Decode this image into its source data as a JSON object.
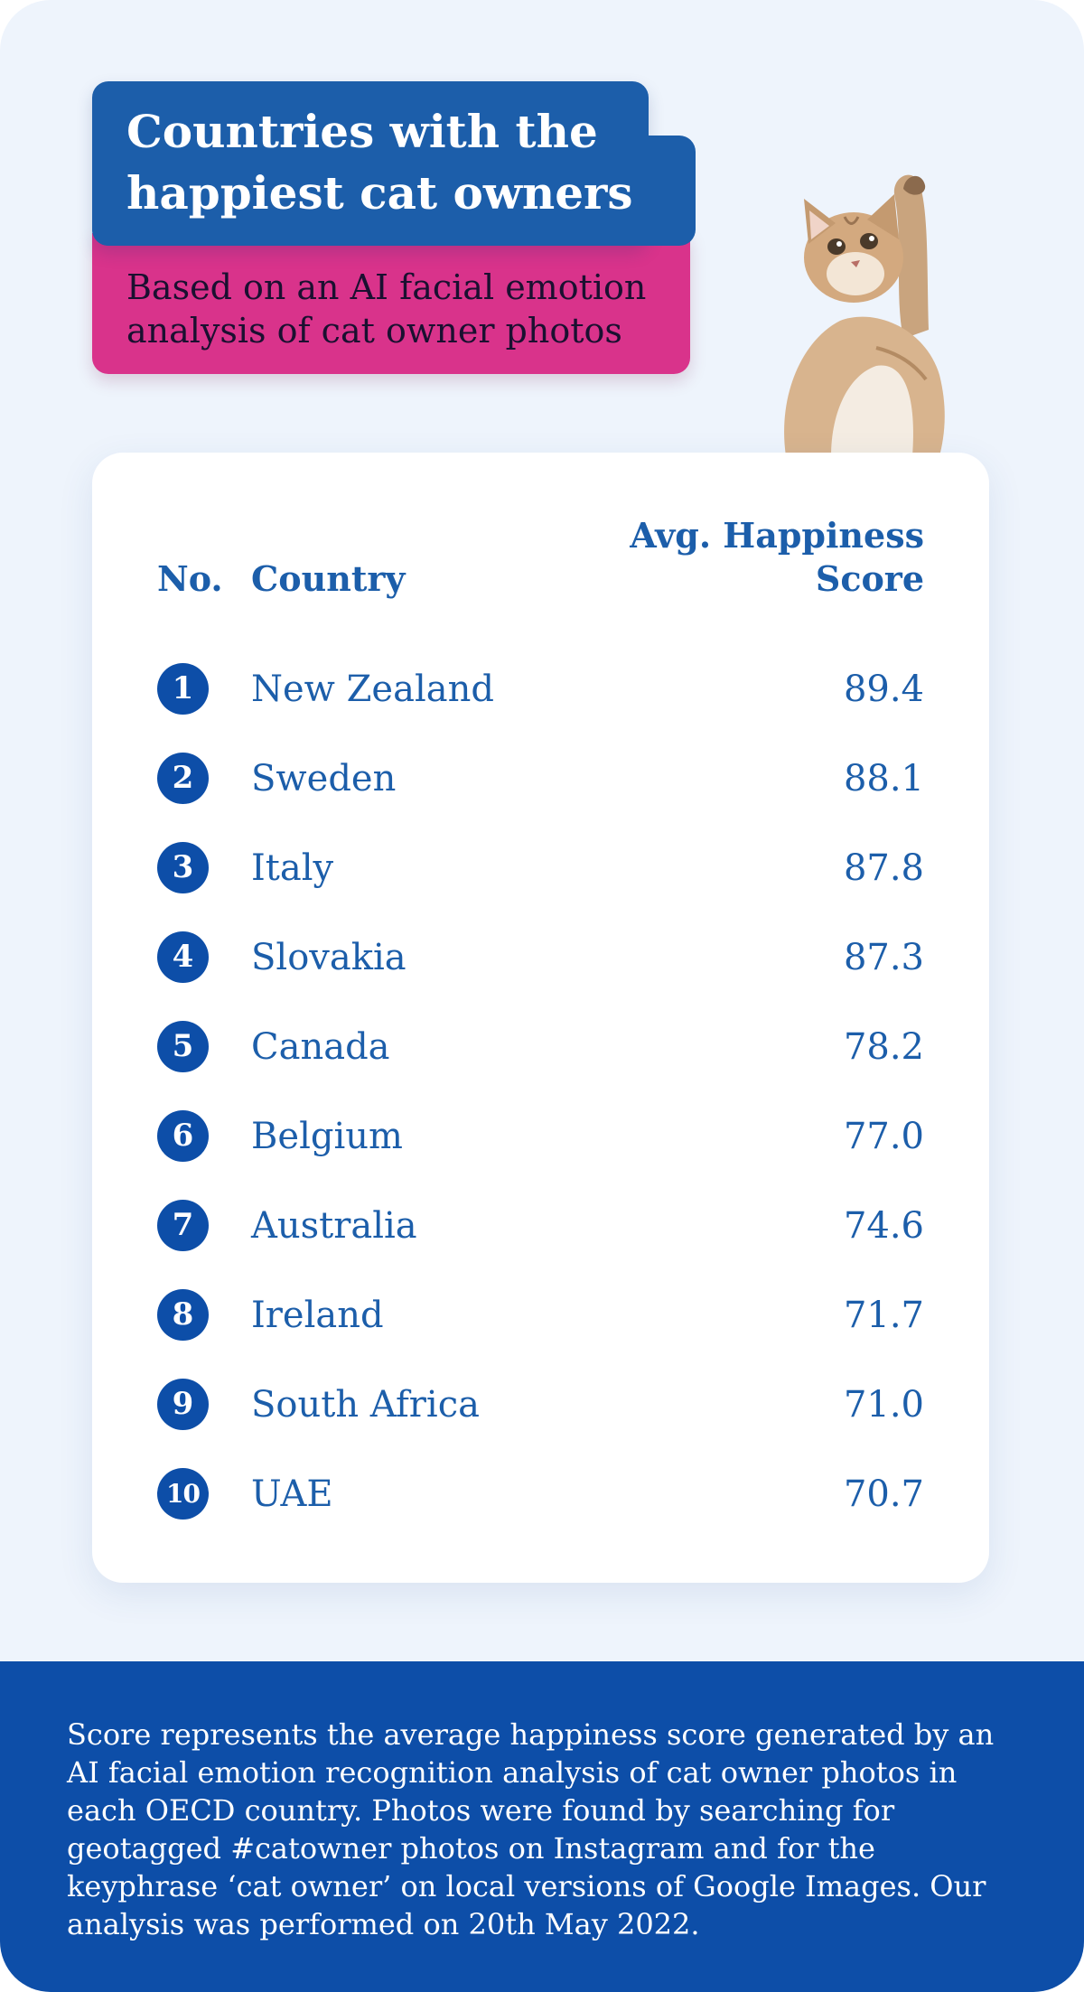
{
  "header": {
    "title": "Countries with the\nhappiest cat owners",
    "subtitle": "Based on an AI facial emotion\nanalysis of cat owner photos"
  },
  "table": {
    "col_no": "No.",
    "col_country": "Country",
    "col_score": "Avg. Happiness\nScore",
    "rows": [
      {
        "rank": "1",
        "country": "New Zealand",
        "score": "89.4"
      },
      {
        "rank": "2",
        "country": "Sweden",
        "score": "88.1"
      },
      {
        "rank": "3",
        "country": "Italy",
        "score": "87.8"
      },
      {
        "rank": "4",
        "country": "Slovakia",
        "score": "87.3"
      },
      {
        "rank": "5",
        "country": "Canada",
        "score": "78.2"
      },
      {
        "rank": "6",
        "country": "Belgium",
        "score": "77.0"
      },
      {
        "rank": "7",
        "country": "Australia",
        "score": "74.6"
      },
      {
        "rank": "8",
        "country": "Ireland",
        "score": "71.7"
      },
      {
        "rank": "9",
        "country": "South Africa",
        "score": "71.0"
      },
      {
        "rank": "10",
        "country": "UAE",
        "score": "70.7"
      }
    ]
  },
  "footer": {
    "note": "Score represents the average happiness score generated by an AI facial emotion recognition analysis of cat owner photos in each OECD country. Photos were found by searching for geotagged #catowner photos on Instagram and for the keyphrase ‘cat owner’ on local versions of Google Images. Our analysis was performed on 20th May 2022."
  },
  "colors": {
    "background": "#eef4fc",
    "title_blue": "#1c5eaa",
    "accent_pink": "#d9338b",
    "badge_blue": "#0d4ea8",
    "footer_blue": "#0d4ea8"
  },
  "icons": {
    "illustration": "cat-illustration"
  }
}
